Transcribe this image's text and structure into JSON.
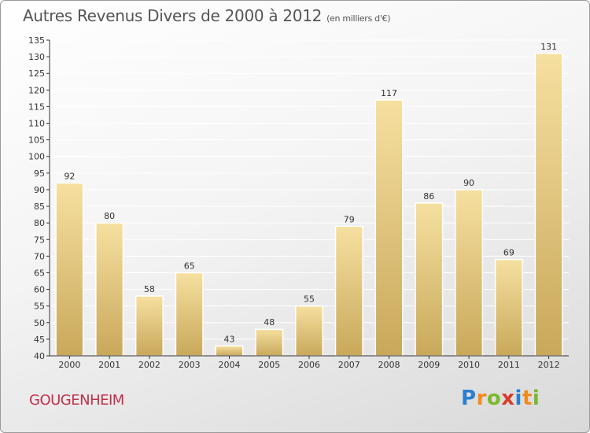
{
  "title": "Autres Revenus Divers de 2000 à 2012",
  "subtitle": "(en milliers d'€)",
  "commune": "GOUGENHEIM",
  "logo": {
    "text": "Proxiti",
    "letters": [
      {
        "char": "P",
        "color": "#2a7fd0"
      },
      {
        "char": "r",
        "color": "#f08c1e"
      },
      {
        "char": "o",
        "color": "#7ab82e"
      },
      {
        "char": "x",
        "color": "#d93a2b"
      },
      {
        "char": "i",
        "color": "#2a7fd0"
      },
      {
        "char": "t",
        "color": "#f08c1e"
      },
      {
        "char": "i",
        "color": "#7ab82e"
      }
    ]
  },
  "colors": {
    "bar_light": "#f6e0a0",
    "bar_dark": "#c9a85a",
    "bar_border": "#ffffff",
    "axis": "#333333",
    "grid": "#ffffff",
    "text": "#333333"
  },
  "chart_data": {
    "type": "bar",
    "title": "Autres Revenus Divers de 2000 à 2012",
    "subtitle": "(en milliers d'€)",
    "categories": [
      "2000",
      "2001",
      "2002",
      "2003",
      "2004",
      "2005",
      "2006",
      "2007",
      "2008",
      "2009",
      "2010",
      "2011",
      "2012"
    ],
    "values": [
      92,
      80,
      58,
      65,
      43,
      48,
      55,
      79,
      117,
      86,
      90,
      69,
      131
    ],
    "ylim": [
      40,
      135
    ],
    "yticks": [
      40,
      45,
      50,
      55,
      60,
      65,
      70,
      75,
      80,
      85,
      90,
      95,
      100,
      105,
      110,
      115,
      120,
      125,
      130,
      135
    ],
    "grid": true,
    "data_labels": true
  }
}
